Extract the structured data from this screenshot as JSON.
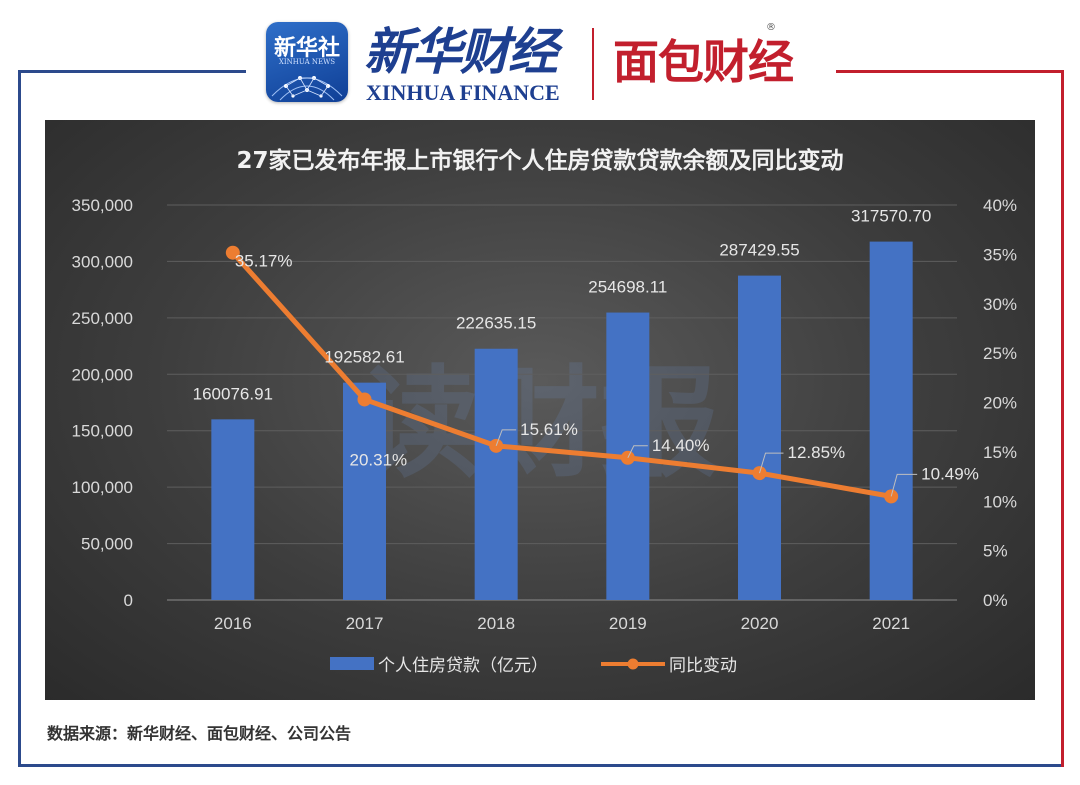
{
  "header": {
    "badge_cn": "新华社",
    "badge_en": "XINHUA NEWS",
    "xinhua_cn": "新华财经",
    "xinhua_en": "XINHUA FINANCE",
    "mianbao_cn": "面包财经",
    "registered": "®"
  },
  "watermark": "读财报",
  "source": "数据来源：新华财经、面包财经、公司公告",
  "colors": {
    "frame_blue": "#2c4a8c",
    "frame_red": "#c21f2d",
    "bar": "#4472c4",
    "line": "#ed7d31",
    "panel": "#404040"
  },
  "chart_data": {
    "type": "bar",
    "title": "27家已发布年报上市银行个人住房贷款贷款余额及同比变动",
    "categories": [
      "2016",
      "2017",
      "2018",
      "2019",
      "2020",
      "2021"
    ],
    "series": [
      {
        "name": "个人住房贷款（亿元）",
        "type": "bar",
        "axis": "left",
        "values": [
          160076.91,
          192582.61,
          222635.15,
          254698.11,
          287429.55,
          317570.7
        ],
        "labels": [
          "160076.91",
          "192582.61",
          "222635.15",
          "254698.11",
          "287429.55",
          "317570.70"
        ]
      },
      {
        "name": "同比变动",
        "type": "line",
        "axis": "right",
        "values": [
          35.17,
          20.31,
          15.61,
          14.4,
          12.85,
          10.49
        ],
        "labels": [
          "35.17%",
          "20.31%",
          "15.61%",
          "14.40%",
          "12.85%",
          "10.49%"
        ]
      }
    ],
    "y_left": {
      "min": 0,
      "max": 350000,
      "ticks": [
        "0",
        "50,000",
        "100,000",
        "150,000",
        "200,000",
        "250,000",
        "300,000",
        "350,000"
      ]
    },
    "y_right": {
      "min": 0,
      "max": 40,
      "ticks": [
        "0%",
        "5%",
        "10%",
        "15%",
        "20%",
        "25%",
        "30%",
        "35%",
        "40%"
      ]
    },
    "grid": true,
    "legend_position": "bottom"
  }
}
